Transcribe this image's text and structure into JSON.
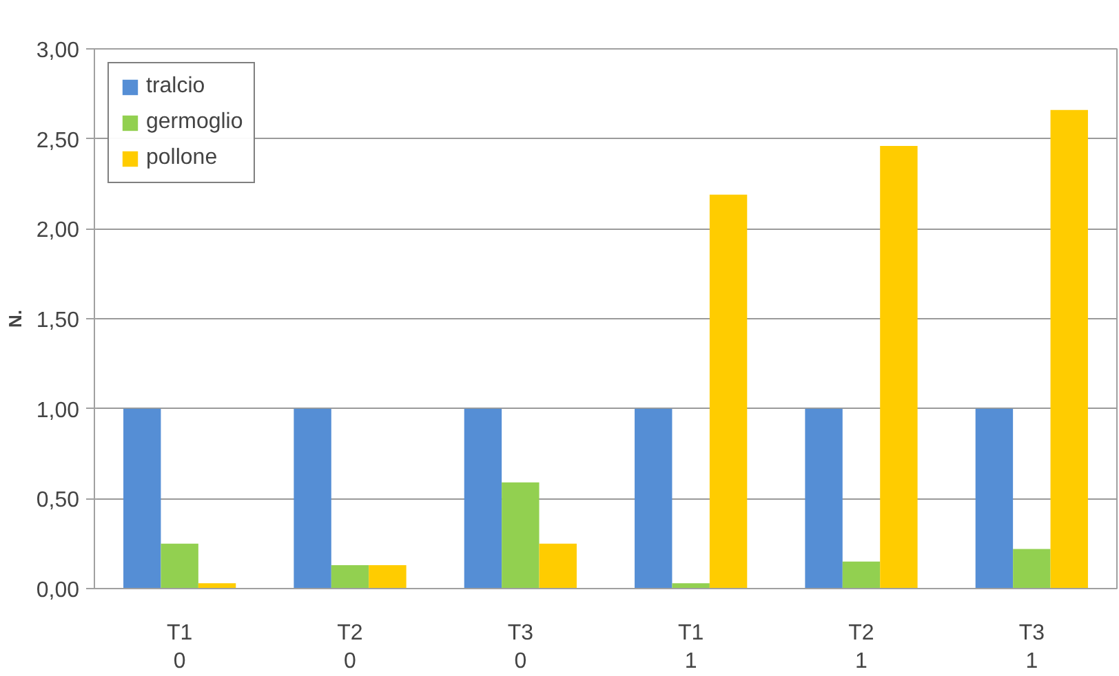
{
  "chart_data": {
    "type": "bar",
    "ylabel": "N.",
    "categories": [
      "T1\n0",
      "T2\n0",
      "T3\n0",
      "T1\n1",
      "T2\n1",
      "T3\n1"
    ],
    "series": [
      {
        "name": "tralcio",
        "color": "#558ed5",
        "values": [
          1.0,
          1.0,
          1.0,
          1.0,
          1.0,
          1.0
        ]
      },
      {
        "name": "germoglio",
        "color": "#92d050",
        "values": [
          0.25,
          0.13,
          0.59,
          0.03,
          0.15,
          0.22
        ]
      },
      {
        "name": "pollone",
        "color": "#ffcc00",
        "values": [
          0.03,
          0.13,
          0.25,
          2.19,
          2.46,
          2.66
        ]
      }
    ],
    "ylim": [
      0,
      3
    ],
    "yticks": [
      {
        "value": 0,
        "label": "0,00"
      },
      {
        "value": 0.5,
        "label": "0,50"
      },
      {
        "value": 1,
        "label": "1,00"
      },
      {
        "value": 1.5,
        "label": "1,50"
      },
      {
        "value": 2,
        "label": "2,00"
      },
      {
        "value": 2.5,
        "label": "2,50"
      },
      {
        "value": 3,
        "label": "3,00"
      }
    ],
    "grid": "y",
    "legend": "top left"
  }
}
